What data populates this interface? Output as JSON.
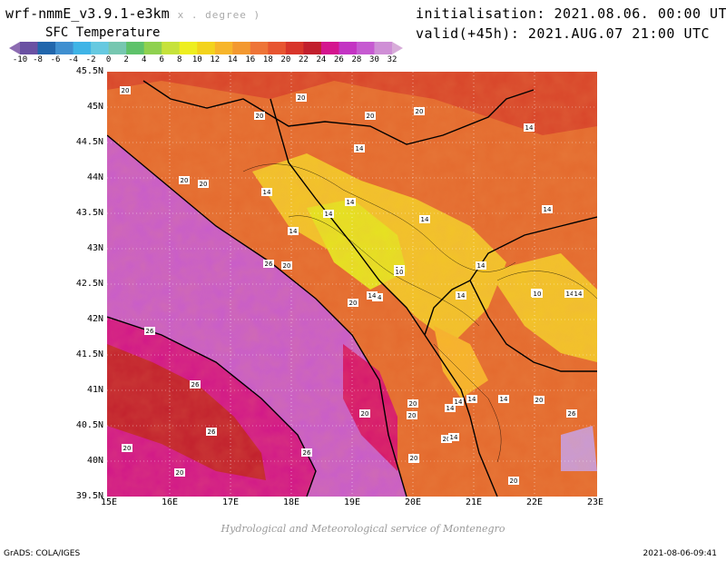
{
  "header": {
    "model": "wrf-nmmE_v3.9.1-e3km",
    "unit": "x . degree )",
    "field": "SFC Temperature",
    "init": "initialisation: 2021.08.06. 00:00 UTC",
    "valid": "valid(+45h): 2021.AUG.07 21:00 UTC"
  },
  "colorbar": {
    "ticks": [
      "-10",
      "-8",
      "-6",
      "-4",
      "-2",
      "0",
      "2",
      "4",
      "6",
      "8",
      "10",
      "12",
      "14",
      "16",
      "18",
      "20",
      "22",
      "24",
      "26",
      "28",
      "30",
      "32"
    ],
    "colors": [
      "#8c6bb1",
      "#6a51a3",
      "#2166ac",
      "#3f8fd0",
      "#3fb4e6",
      "#66c9e0",
      "#76c7b0",
      "#5ec26a",
      "#8fd14f",
      "#c6e23b",
      "#eeee20",
      "#f3d31c",
      "#f7b52a",
      "#f3982f",
      "#ee7437",
      "#e75530",
      "#d8352a",
      "#c11f2d",
      "#d4158e",
      "#c334c3",
      "#c65ad1",
      "#cf8fd6",
      "#d7acd9"
    ]
  },
  "axes": {
    "lat": [
      "45.5N",
      "45N",
      "44.5N",
      "44N",
      "43.5N",
      "43N",
      "42.5N",
      "42N",
      "41.5N",
      "41N",
      "40.5N",
      "40N",
      "39.5N"
    ],
    "lon": [
      "15E",
      "16E",
      "17E",
      "18E",
      "19E",
      "20E",
      "21E",
      "22E",
      "23E"
    ]
  },
  "contour_labels": [
    "20",
    "20",
    "20",
    "20",
    "20",
    "14",
    "14",
    "20",
    "20",
    "14",
    "14",
    "14",
    "14",
    "14",
    "14",
    "14",
    "14",
    "14",
    "20",
    "26",
    "20",
    "10",
    "14",
    "14",
    "14",
    "14",
    "10",
    "14",
    "20",
    "26",
    "26",
    "26",
    "20",
    "20",
    "14",
    "14",
    "14",
    "14",
    "20",
    "20",
    "26",
    "20",
    "20",
    "26",
    "20",
    "20",
    "20",
    "14"
  ],
  "footer": {
    "credit": "Hydrological and Meteorological service of Montenegro",
    "grads": "GrADS: COLA/IGES",
    "stamp": "2021-08-06-09:41"
  }
}
